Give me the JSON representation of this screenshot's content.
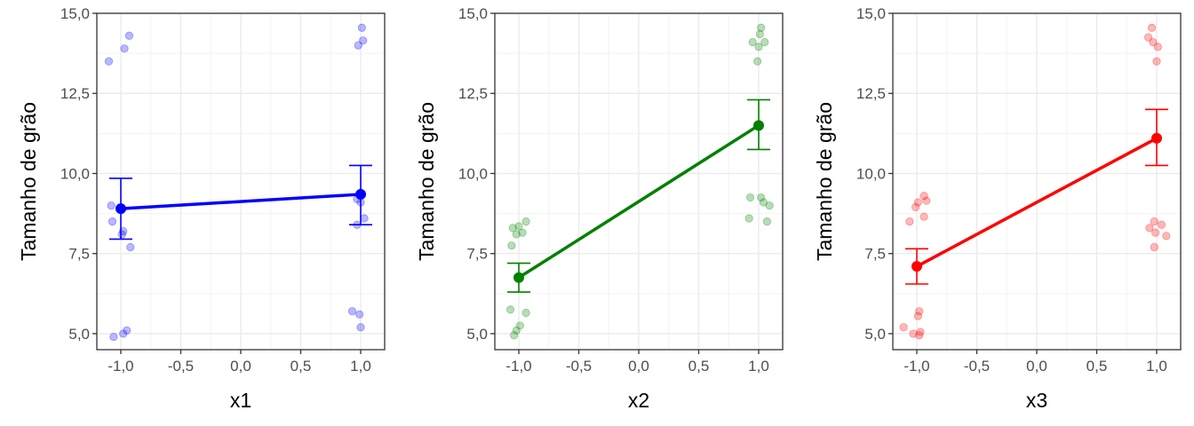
{
  "chart_data": [
    {
      "type": "scatter",
      "title": "",
      "xlabel": "x1",
      "ylabel": "Tamanho de grão",
      "xlim": [
        -1.2,
        1.2
      ],
      "ylim": [
        4.5,
        15.0
      ],
      "x_ticks": [
        -1.0,
        -0.5,
        0.0,
        0.5,
        1.0
      ],
      "x_tick_labels": [
        "-1,0",
        "-0,5",
        "0,0",
        "0,5",
        "1,0"
      ],
      "y_ticks": [
        5.0,
        7.5,
        10.0,
        12.5,
        15.0
      ],
      "y_tick_labels": [
        "5,0",
        "7,5",
        "10,0",
        "12,5",
        "15,0"
      ],
      "grid": true,
      "color": "#0000ff",
      "points": [
        {
          "x": -1.1,
          "y": 13.5
        },
        {
          "x": -0.97,
          "y": 13.9
        },
        {
          "x": -0.93,
          "y": 14.3
        },
        {
          "x": -1.08,
          "y": 9.0
        },
        {
          "x": -1.07,
          "y": 8.5
        },
        {
          "x": -0.98,
          "y": 8.2
        },
        {
          "x": -0.99,
          "y": 8.1
        },
        {
          "x": -0.92,
          "y": 7.7
        },
        {
          "x": -1.06,
          "y": 4.9
        },
        {
          "x": -0.98,
          "y": 5.0
        },
        {
          "x": -0.95,
          "y": 5.1
        },
        {
          "x": 1.01,
          "y": 14.55
        },
        {
          "x": 1.02,
          "y": 14.15
        },
        {
          "x": 0.98,
          "y": 14.0
        },
        {
          "x": 1.0,
          "y": 9.4
        },
        {
          "x": 0.97,
          "y": 9.2
        },
        {
          "x": 1.0,
          "y": 9.1
        },
        {
          "x": 1.03,
          "y": 8.6
        },
        {
          "x": 0.97,
          "y": 8.4
        },
        {
          "x": 0.93,
          "y": 5.7
        },
        {
          "x": 0.99,
          "y": 5.6
        },
        {
          "x": 1.0,
          "y": 5.2
        }
      ],
      "means": [
        {
          "x": -1.0,
          "y": 8.9,
          "ymin": 7.95,
          "ymax": 9.85
        },
        {
          "x": 1.0,
          "y": 9.35,
          "ymin": 8.4,
          "ymax": 10.25
        }
      ]
    },
    {
      "type": "scatter",
      "title": "",
      "xlabel": "x2",
      "ylabel": "Tamanho de grão",
      "xlim": [
        -1.2,
        1.2
      ],
      "ylim": [
        4.5,
        15.0
      ],
      "x_ticks": [
        -1.0,
        -0.5,
        0.0,
        0.5,
        1.0
      ],
      "x_tick_labels": [
        "-1,0",
        "-0,5",
        "0,0",
        "0,5",
        "1,0"
      ],
      "y_ticks": [
        5.0,
        7.5,
        10.0,
        12.5,
        15.0
      ],
      "y_tick_labels": [
        "5,0",
        "7,5",
        "10,0",
        "12,5",
        "15,0"
      ],
      "grid": true,
      "color": "#008000",
      "points": [
        {
          "x": -1.05,
          "y": 8.3
        },
        {
          "x": -1.0,
          "y": 8.35
        },
        {
          "x": -0.94,
          "y": 8.5
        },
        {
          "x": -0.97,
          "y": 8.15
        },
        {
          "x": -1.02,
          "y": 8.1
        },
        {
          "x": -1.06,
          "y": 7.75
        },
        {
          "x": -1.07,
          "y": 5.75
        },
        {
          "x": -0.94,
          "y": 5.65
        },
        {
          "x": -0.99,
          "y": 5.25
        },
        {
          "x": -1.02,
          "y": 5.1
        },
        {
          "x": -1.04,
          "y": 4.95
        },
        {
          "x": 1.02,
          "y": 14.55
        },
        {
          "x": 1.01,
          "y": 14.35
        },
        {
          "x": 0.95,
          "y": 14.1
        },
        {
          "x": 1.05,
          "y": 14.1
        },
        {
          "x": 1.0,
          "y": 13.95
        },
        {
          "x": 0.99,
          "y": 13.5
        },
        {
          "x": 0.93,
          "y": 9.25
        },
        {
          "x": 1.02,
          "y": 9.25
        },
        {
          "x": 1.04,
          "y": 9.1
        },
        {
          "x": 1.09,
          "y": 9.0
        },
        {
          "x": 0.92,
          "y": 8.6
        },
        {
          "x": 1.07,
          "y": 8.5
        }
      ],
      "means": [
        {
          "x": -1.0,
          "y": 6.75,
          "ymin": 6.3,
          "ymax": 7.2
        },
        {
          "x": 1.0,
          "y": 11.5,
          "ymin": 10.75,
          "ymax": 12.3
        }
      ]
    },
    {
      "type": "scatter",
      "title": "",
      "xlabel": "x3",
      "ylabel": "Tamanho de grão",
      "xlim": [
        -1.2,
        1.2
      ],
      "ylim": [
        4.5,
        15.0
      ],
      "x_ticks": [
        -1.0,
        -0.5,
        0.0,
        0.5,
        1.0
      ],
      "x_tick_labels": [
        "-1,0",
        "-0,5",
        "0,0",
        "0,5",
        "1,0"
      ],
      "y_ticks": [
        5.0,
        7.5,
        10.0,
        12.5,
        15.0
      ],
      "y_tick_labels": [
        "5,0",
        "7,5",
        "10,0",
        "12,5",
        "15,0"
      ],
      "grid": true,
      "color": "#ff0000",
      "points": [
        {
          "x": -0.94,
          "y": 9.3
        },
        {
          "x": -0.92,
          "y": 9.15
        },
        {
          "x": -0.99,
          "y": 9.1
        },
        {
          "x": -1.01,
          "y": 8.95
        },
        {
          "x": -0.94,
          "y": 8.65
        },
        {
          "x": -1.06,
          "y": 8.5
        },
        {
          "x": -0.98,
          "y": 5.7
        },
        {
          "x": -0.99,
          "y": 5.55
        },
        {
          "x": -1.11,
          "y": 5.2
        },
        {
          "x": -0.97,
          "y": 5.05
        },
        {
          "x": -1.03,
          "y": 5.0
        },
        {
          "x": -0.98,
          "y": 4.95
        },
        {
          "x": 0.96,
          "y": 14.55
        },
        {
          "x": 0.93,
          "y": 14.25
        },
        {
          "x": 0.97,
          "y": 14.1
        },
        {
          "x": 1.01,
          "y": 13.95
        },
        {
          "x": 1.0,
          "y": 13.5
        },
        {
          "x": 0.98,
          "y": 8.5
        },
        {
          "x": 0.94,
          "y": 8.3
        },
        {
          "x": 1.04,
          "y": 8.4
        },
        {
          "x": 0.99,
          "y": 8.15
        },
        {
          "x": 1.08,
          "y": 8.05
        },
        {
          "x": 0.98,
          "y": 7.7
        }
      ],
      "means": [
        {
          "x": -1.0,
          "y": 7.1,
          "ymin": 6.55,
          "ymax": 7.65
        },
        {
          "x": 1.0,
          "y": 11.1,
          "ymin": 10.25,
          "ymax": 12.0
        }
      ]
    }
  ]
}
